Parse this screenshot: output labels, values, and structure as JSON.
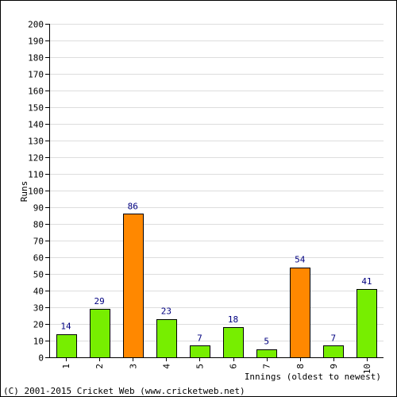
{
  "chart_data": {
    "type": "bar",
    "categories": [
      "1",
      "2",
      "3",
      "4",
      "5",
      "6",
      "7",
      "8",
      "9",
      "10"
    ],
    "values": [
      14,
      29,
      86,
      23,
      7,
      18,
      5,
      54,
      7,
      41
    ],
    "bar_colors": [
      "#77ee00",
      "#77ee00",
      "#ff8800",
      "#77ee00",
      "#77ee00",
      "#77ee00",
      "#77ee00",
      "#ff8800",
      "#77ee00",
      "#77ee00"
    ],
    "value_labels": [
      "14",
      "29",
      "86",
      "23",
      "7",
      "18",
      "5",
      "54",
      "7",
      "41"
    ],
    "ylabel": "Runs",
    "xlabel": "Innings (oldest to newest)",
    "ylim": [
      0,
      200
    ],
    "ytick_step": 10,
    "grid": true,
    "colors": {
      "label_text": "#000080",
      "gridline": "#dddddd",
      "frame": "#000000"
    }
  },
  "footer": {
    "copyright": "(C) 2001-2015 Cricket Web (www.cricketweb.net)"
  }
}
